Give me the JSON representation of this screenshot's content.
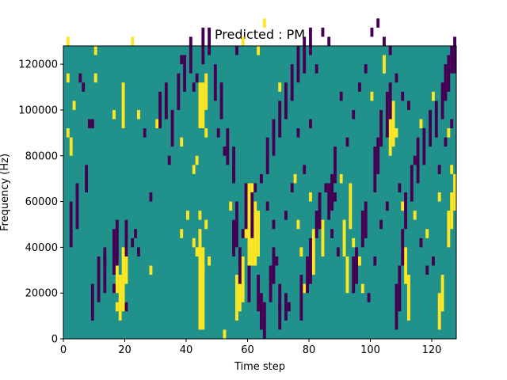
{
  "chart_data": {
    "type": "heatmap",
    "title": "Predicted : PM",
    "xlabel": "Time step",
    "ylabel": "Frequency (Hz)",
    "xlim": [
      0,
      128
    ],
    "ylim": [
      0,
      128000
    ],
    "xticks": [
      0,
      20,
      40,
      60,
      80,
      100,
      120
    ],
    "yticks": [
      0,
      20000,
      40000,
      60000,
      80000,
      100000,
      120000
    ],
    "grid": false,
    "colors": {
      "background": "#21918c",
      "high": "#fde725",
      "low": "#440154"
    },
    "bin_width": 1,
    "bin_height": 4000,
    "high_cells": [
      [
        1,
        32
      ],
      [
        1,
        28
      ],
      [
        1,
        22
      ],
      [
        2,
        20
      ],
      [
        2,
        21
      ],
      [
        3,
        43
      ],
      [
        3,
        25
      ],
      [
        10,
        31
      ],
      [
        10,
        28
      ],
      [
        16,
        24
      ],
      [
        16,
        8
      ],
      [
        17,
        3
      ],
      [
        22,
        32
      ],
      [
        24,
        24
      ],
      [
        28,
        7
      ],
      [
        30,
        23
      ],
      [
        38,
        21
      ],
      [
        38,
        11
      ],
      [
        40,
        13
      ],
      [
        42,
        18
      ],
      [
        42,
        10
      ],
      [
        43,
        19
      ],
      [
        43,
        9
      ],
      [
        44,
        13
      ],
      [
        44,
        10
      ],
      [
        45,
        7
      ],
      [
        46,
        22
      ],
      [
        46,
        12
      ],
      [
        47,
        8
      ],
      [
        52,
        0
      ],
      [
        54,
        14
      ],
      [
        58,
        32
      ],
      [
        59,
        11
      ],
      [
        60,
        10
      ],
      [
        61,
        8
      ],
      [
        63,
        31
      ],
      [
        65,
        34
      ],
      [
        70,
        27
      ],
      [
        75,
        17
      ],
      [
        76,
        12
      ],
      [
        77,
        9
      ],
      [
        78,
        5
      ],
      [
        80,
        15
      ],
      [
        90,
        17
      ],
      [
        94,
        10
      ],
      [
        96,
        8
      ],
      [
        97,
        5
      ],
      [
        100,
        26
      ],
      [
        104,
        29
      ],
      [
        104,
        30
      ],
      [
        108,
        22
      ],
      [
        110,
        14
      ],
      [
        114,
        13
      ],
      [
        116,
        23
      ],
      [
        118,
        11
      ],
      [
        120,
        26
      ],
      [
        122,
        15
      ],
      [
        125,
        22
      ],
      [
        126,
        18
      ]
    ],
    "high_runs": [
      [
        60,
        8,
        16
      ],
      [
        61,
        8,
        16
      ],
      [
        62,
        8,
        14
      ],
      [
        63,
        9,
        13
      ],
      [
        44,
        23,
        27
      ],
      [
        45,
        23,
        27
      ],
      [
        46,
        25,
        28
      ],
      [
        19,
        23,
        27
      ],
      [
        19,
        3,
        9
      ],
      [
        18,
        2,
        6
      ],
      [
        17,
        5,
        8
      ],
      [
        20,
        6,
        10
      ],
      [
        44,
        1,
        11
      ],
      [
        45,
        1,
        9
      ],
      [
        92,
        5,
        8
      ],
      [
        91,
        9,
        12
      ],
      [
        93,
        12,
        16
      ],
      [
        56,
        2,
        6
      ],
      [
        57,
        3,
        7
      ],
      [
        58,
        4,
        8
      ],
      [
        81,
        7,
        11
      ],
      [
        84,
        9,
        12
      ],
      [
        106,
        20,
        24
      ],
      [
        107,
        21,
        25
      ],
      [
        112,
        2,
        6
      ],
      [
        111,
        6,
        9
      ],
      [
        122,
        1,
        4
      ],
      [
        123,
        3,
        6
      ],
      [
        125,
        10,
        13
      ],
      [
        126,
        12,
        15
      ],
      [
        127,
        14,
        17
      ]
    ],
    "low_cells": [
      [
        3,
        42
      ],
      [
        5,
        28
      ],
      [
        6,
        27
      ],
      [
        8,
        23
      ],
      [
        9,
        23
      ],
      [
        13,
        8
      ],
      [
        16,
        5
      ],
      [
        20,
        3
      ],
      [
        22,
        10
      ],
      [
        23,
        11
      ],
      [
        24,
        9
      ],
      [
        26,
        22
      ],
      [
        28,
        15
      ],
      [
        34,
        19
      ],
      [
        38,
        30
      ],
      [
        40,
        38
      ],
      [
        42,
        27
      ],
      [
        43,
        28
      ],
      [
        50,
        22
      ],
      [
        52,
        20
      ],
      [
        56,
        31
      ],
      [
        58,
        11
      ],
      [
        59,
        12
      ],
      [
        61,
        15
      ],
      [
        62,
        16
      ],
      [
        64,
        17
      ],
      [
        66,
        14
      ],
      [
        68,
        12
      ],
      [
        69,
        8
      ],
      [
        70,
        3
      ],
      [
        72,
        13
      ],
      [
        74,
        16
      ],
      [
        76,
        22
      ],
      [
        78,
        18
      ],
      [
        80,
        23
      ],
      [
        82,
        29
      ],
      [
        84,
        33
      ],
      [
        86,
        32
      ],
      [
        90,
        26
      ],
      [
        92,
        21
      ],
      [
        94,
        24
      ],
      [
        96,
        27
      ],
      [
        98,
        29
      ],
      [
        100,
        33
      ],
      [
        102,
        34
      ],
      [
        104,
        32
      ],
      [
        106,
        31
      ],
      [
        108,
        28
      ],
      [
        110,
        26
      ],
      [
        112,
        25
      ],
      [
        114,
        19
      ],
      [
        116,
        10
      ],
      [
        118,
        7
      ],
      [
        120,
        8
      ],
      [
        122,
        18
      ],
      [
        124,
        21
      ],
      [
        126,
        23
      ],
      [
        127,
        29
      ],
      [
        73,
        3
      ],
      [
        85,
        16
      ],
      [
        87,
        11
      ],
      [
        88,
        15
      ],
      [
        89,
        9
      ],
      [
        99,
        4
      ],
      [
        101,
        8
      ],
      [
        103,
        12
      ],
      [
        105,
        14
      ],
      [
        109,
        16
      ]
    ],
    "low_runs": [
      [
        9,
        2,
        5
      ],
      [
        11,
        4,
        8
      ],
      [
        13,
        5,
        9
      ],
      [
        16,
        7,
        11
      ],
      [
        17,
        8,
        12
      ],
      [
        20,
        9,
        12
      ],
      [
        55,
        9,
        12
      ],
      [
        56,
        10,
        14
      ],
      [
        57,
        6,
        9
      ],
      [
        60,
        4,
        7
      ],
      [
        63,
        3,
        6
      ],
      [
        64,
        1,
        4
      ],
      [
        65,
        0,
        3
      ],
      [
        67,
        4,
        7
      ],
      [
        68,
        6,
        9
      ],
      [
        70,
        1,
        5
      ],
      [
        72,
        2,
        4
      ],
      [
        77,
        2,
        6
      ],
      [
        79,
        5,
        8
      ],
      [
        80,
        6,
        10
      ],
      [
        82,
        11,
        13
      ],
      [
        83,
        12,
        15
      ],
      [
        86,
        13,
        16
      ],
      [
        87,
        14,
        17
      ],
      [
        88,
        17,
        20
      ],
      [
        94,
        5,
        8
      ],
      [
        95,
        6,
        9
      ],
      [
        97,
        10,
        13
      ],
      [
        98,
        11,
        14
      ],
      [
        101,
        16,
        20
      ],
      [
        102,
        18,
        21
      ],
      [
        103,
        21,
        24
      ],
      [
        105,
        22,
        26
      ],
      [
        106,
        24,
        27
      ],
      [
        108,
        1,
        5
      ],
      [
        109,
        3,
        7
      ],
      [
        110,
        8,
        11
      ],
      [
        111,
        12,
        15
      ],
      [
        113,
        15,
        18
      ],
      [
        115,
        17,
        21
      ],
      [
        117,
        19,
        22
      ],
      [
        119,
        21,
        24
      ],
      [
        121,
        22,
        25
      ],
      [
        123,
        24,
        27
      ],
      [
        124,
        26,
        29
      ],
      [
        125,
        27,
        30
      ],
      [
        126,
        29,
        31
      ],
      [
        127,
        30,
        32
      ],
      [
        2,
        10,
        14
      ],
      [
        4,
        12,
        16
      ],
      [
        7,
        16,
        18
      ],
      [
        31,
        23,
        26
      ],
      [
        33,
        24,
        27
      ],
      [
        35,
        21,
        24
      ],
      [
        37,
        25,
        28
      ],
      [
        39,
        27,
        30
      ],
      [
        41,
        29,
        32
      ],
      [
        45,
        30,
        33
      ],
      [
        47,
        31,
        33
      ],
      [
        49,
        26,
        29
      ],
      [
        51,
        24,
        27
      ],
      [
        53,
        19,
        22
      ],
      [
        55,
        17,
        20
      ],
      [
        59,
        13,
        16
      ],
      [
        61,
        11,
        14
      ],
      [
        66,
        18,
        21
      ],
      [
        68,
        20,
        23
      ],
      [
        70,
        22,
        25
      ],
      [
        72,
        24,
        27
      ],
      [
        74,
        26,
        29
      ],
      [
        76,
        28,
        31
      ],
      [
        78,
        29,
        32
      ],
      [
        80,
        31,
        33
      ]
    ]
  }
}
